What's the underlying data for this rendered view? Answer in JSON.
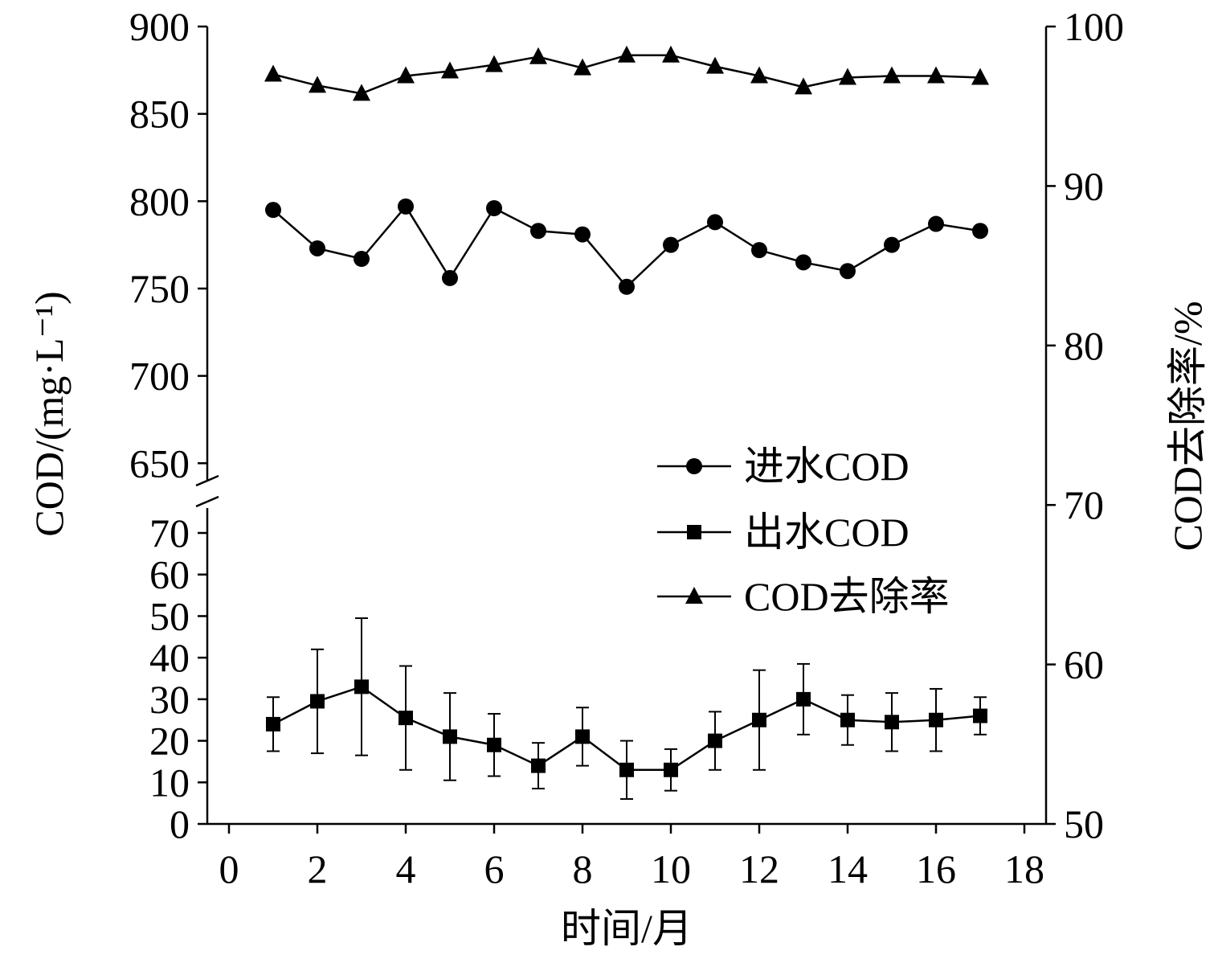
{
  "chart_data": {
    "type": "line",
    "xlabel": "时间/月",
    "ylabel_left": "COD/(mg·L⁻¹)",
    "ylabel_right": "COD去除率/%",
    "x_ticks": [
      "0",
      "2",
      "4",
      "6",
      "8",
      "10",
      "12",
      "14",
      "16",
      "18"
    ],
    "xlim": [
      0,
      18
    ],
    "y_left_upper_ticks": [
      "650",
      "700",
      "750",
      "800",
      "850",
      "900"
    ],
    "y_left_upper_range": [
      640,
      900
    ],
    "y_left_lower_ticks": [
      "0",
      "10",
      "20",
      "30",
      "40",
      "50",
      "60",
      "70"
    ],
    "y_left_lower_range": [
      0,
      76
    ],
    "y_right_ticks": [
      "50",
      "60",
      "70",
      "80",
      "90",
      "100"
    ],
    "y_right_range": [
      50,
      100
    ],
    "axis_break": "left y-axis between 76 and 640",
    "legend_position": "right-middle",
    "grid": false,
    "x": [
      1,
      2,
      3,
      4,
      5,
      6,
      7,
      8,
      9,
      10,
      11,
      12,
      13,
      14,
      15,
      16,
      17
    ],
    "series": [
      {
        "name": "进水COD",
        "marker": "circle",
        "axis": "left",
        "values": [
          795,
          773,
          767,
          797,
          756,
          796,
          783,
          781,
          751,
          775,
          788,
          772,
          765,
          760,
          775,
          787,
          783
        ]
      },
      {
        "name": "出水COD",
        "marker": "square",
        "axis": "left",
        "values": [
          24,
          29.5,
          33,
          25.5,
          21,
          19,
          14,
          21,
          13,
          13,
          20,
          25,
          30,
          25,
          24.5,
          25,
          26
        ],
        "error": [
          6.5,
          12.5,
          16.5,
          12.5,
          10.5,
          7.5,
          5.5,
          7,
          7,
          5,
          7,
          12,
          8.5,
          6,
          7,
          7.5,
          4.5
        ]
      },
      {
        "name": "COD去除率",
        "marker": "triangle",
        "axis": "right",
        "values": [
          97,
          96.3,
          95.8,
          96.9,
          97.2,
          97.6,
          98.1,
          97.4,
          98.2,
          98.2,
          97.5,
          96.9,
          96.2,
          96.8,
          96.9,
          96.9,
          96.8
        ]
      }
    ]
  }
}
